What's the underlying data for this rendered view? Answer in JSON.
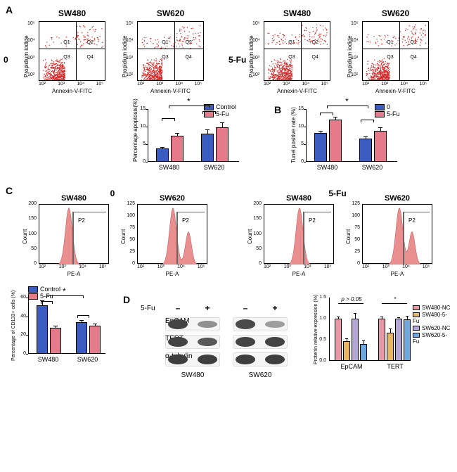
{
  "colors": {
    "scatter_dot": "#d42a2a",
    "bar_blue": "#3a5bbf",
    "bar_pink": "#e47a8a",
    "histo_fill": "#e98f8f",
    "bar_d_pink": "#e79aa5",
    "bar_d_orange": "#e8b565",
    "bar_d_lilac": "#b4a7d6",
    "bar_d_blue": "#6fa8dc",
    "band_dark": "#3a3a3a",
    "band_med": "#6a6a6a",
    "band_light": "#9a9a9a"
  },
  "panelA": {
    "label": "A",
    "row_labels": [
      "0",
      "5-Fu"
    ],
    "cell_titles": [
      "SW480",
      "SW620"
    ],
    "y_axis": "Propidium iodide",
    "x_axis": "Annexin-V-FITC",
    "y_ticks": [
      "10⁵",
      "10⁴",
      "10³",
      "10²"
    ],
    "x_ticks": [
      "10²",
      "10³",
      "10⁴",
      "10⁵"
    ],
    "quadrants": [
      "Q1",
      "Q2",
      "Q3",
      "Q4"
    ],
    "scatter_params": [
      {
        "n": 550,
        "spread": 0.95,
        "upshift": 0.02
      },
      {
        "n": 550,
        "spread": 0.9,
        "upshift": 0.0
      },
      {
        "n": 580,
        "spread": 1.05,
        "upshift": 0.06
      },
      {
        "n": 580,
        "spread": 1.0,
        "upshift": 0.04
      }
    ],
    "bar": {
      "y_label": "Percentage apoptosis(%)",
      "ymax": 15,
      "ticks": [
        0,
        5,
        10,
        15
      ],
      "groups": [
        "SW480",
        "SW620"
      ],
      "legend": [
        "Control",
        "5-Fu"
      ],
      "values": {
        "SW480": [
          3.8,
          7.5
        ],
        "SW620": [
          8.0,
          9.8
        ]
      },
      "errors": {
        "SW480": [
          0.4,
          0.8
        ],
        "SW620": [
          1.2,
          1.4
        ]
      },
      "sig": "*"
    }
  },
  "panelB": {
    "label": "B",
    "y_label": "Tunel positive rate (%)",
    "ymax": 15,
    "ticks": [
      0,
      5,
      10,
      15
    ],
    "groups": [
      "SW480",
      "SW620"
    ],
    "legend": [
      "0",
      "5-Fu"
    ],
    "values": {
      "SW480": [
        8.2,
        12.0
      ],
      "SW620": [
        6.7,
        8.9
      ]
    },
    "errors": {
      "SW480": [
        0.7,
        0.9
      ],
      "SW620": [
        0.6,
        0.9
      ]
    },
    "sig": "*"
  },
  "panelC": {
    "label": "C",
    "cond_titles": [
      "0",
      "5-Fu"
    ],
    "cell_titles": [
      "SW480",
      "SW620"
    ],
    "y_label": "Count",
    "x_label": "PE-A",
    "y_ticks": [
      "0",
      "50",
      "100",
      "150",
      "200"
    ],
    "y_ticks_b": [
      "0",
      "25",
      "50",
      "75",
      "100",
      "125"
    ],
    "x_ticks": [
      "10²",
      "10³",
      "10⁴",
      "10⁵"
    ],
    "gate_label": "P2",
    "histos": [
      {
        "peak_x": 0.42,
        "second": null
      },
      {
        "peak_x": 0.5,
        "second": 0.72
      },
      {
        "peak_x": 0.5,
        "second": null
      },
      {
        "peak_x": 0.52,
        "second": 0.7
      }
    ],
    "bar": {
      "y_label": "Percentage of CD133+ cells (%)",
      "ymax": 60,
      "ticks": [
        0,
        20,
        40,
        60
      ],
      "groups": [
        "SW480",
        "SW620"
      ],
      "legend": [
        "Control",
        "5-Fu"
      ],
      "values": {
        "SW480": [
          52,
          28
        ],
        "SW620": [
          34,
          30
        ]
      },
      "errors": {
        "SW480": [
          5,
          2
        ],
        "SW620": [
          2,
          2
        ]
      },
      "sig": "*"
    }
  },
  "panelD": {
    "label": "D",
    "header": "5-Fu",
    "lane_labels": [
      "–",
      "+",
      "–",
      "+"
    ],
    "proteins": [
      "EpCAM",
      "TERT",
      "α-tubulin"
    ],
    "cells": [
      "SW480",
      "SW620"
    ],
    "intensities": {
      "EpCAM": [
        0.95,
        0.4,
        0.9,
        0.3
      ],
      "TERT": [
        0.95,
        0.8,
        0.95,
        0.95
      ],
      "atub": [
        0.98,
        0.98,
        0.98,
        0.98
      ]
    },
    "bar": {
      "y_label": "Protenin relative expression (%)",
      "ymax": 1.5,
      "ticks": [
        0.0,
        0.5,
        1.0,
        1.5
      ],
      "groups": [
        "EpCAM",
        "TERT"
      ],
      "legend": [
        "SW480-NC",
        "SW480-5-Fu",
        "SW620-NC",
        "SW620-5-Fu"
      ],
      "legend_colors": [
        "bar_d_pink",
        "bar_d_orange",
        "bar_d_lilac",
        "bar_d_blue"
      ],
      "values": {
        "EpCAM": [
          1.0,
          0.46,
          1.0,
          0.4
        ],
        "TERT": [
          1.0,
          0.67,
          1.0,
          0.98
        ]
      },
      "errors": {
        "EpCAM": [
          0.05,
          0.07,
          0.13,
          0.09
        ],
        "TERT": [
          0.05,
          0.1,
          0.04,
          0.09
        ]
      },
      "annot": [
        "p > 0.05",
        "*"
      ]
    }
  }
}
